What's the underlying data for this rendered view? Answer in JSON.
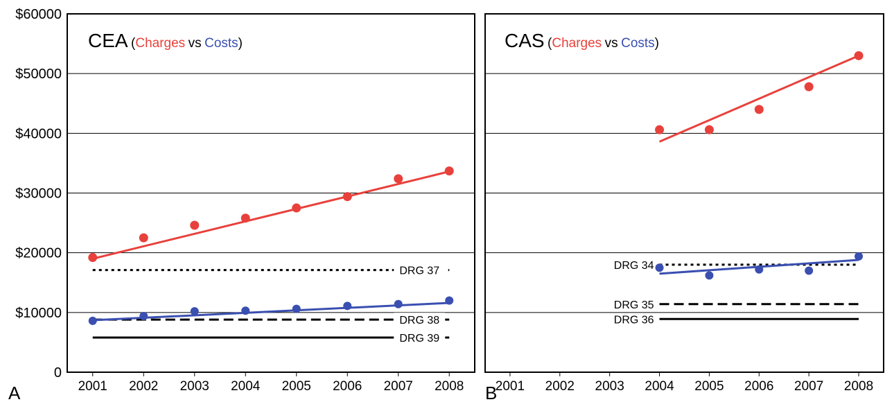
{
  "chart_data": [
    {
      "type": "scatter",
      "panel_label": "A",
      "title": "CEA",
      "series_brackets": [
        "(",
        ")"
      ],
      "series_separator": "vs",
      "xlim": [
        2000.5,
        2008.5
      ],
      "xticks": [
        2001,
        2002,
        2003,
        2004,
        2005,
        2006,
        2007,
        2008
      ],
      "ylim": [
        0,
        60000
      ],
      "yticks": [
        0,
        {
          "value": 10000,
          "label": "$10000"
        },
        {
          "value": 20000,
          "label": "$20000"
        },
        {
          "value": 30000,
          "label": "$30000"
        },
        {
          "value": 40000,
          "label": "$40000"
        },
        {
          "value": 50000,
          "label": "$50000"
        },
        {
          "value": 60000,
          "label": "$60000"
        }
      ],
      "y_tick_labels": true,
      "grid": true,
      "series": [
        {
          "name": "Charges",
          "color": "#e8413c",
          "x": [
            2001,
            2002,
            2003,
            2004,
            2005,
            2006,
            2007,
            2008
          ],
          "values": [
            19200,
            22500,
            24600,
            25800,
            27500,
            29400,
            32400,
            33700
          ],
          "trend": {
            "x": [
              2001,
              2008
            ],
            "values": [
              19000,
              33600
            ]
          }
        },
        {
          "name": "Costs",
          "color": "#3a4fb0",
          "x": [
            2001,
            2002,
            2003,
            2004,
            2005,
            2006,
            2007,
            2008
          ],
          "values": [
            8600,
            9400,
            10200,
            10300,
            10600,
            11100,
            11400,
            12000
          ],
          "trend": {
            "x": [
              2001,
              2008
            ],
            "values": [
              8700,
              11600
            ]
          }
        }
      ],
      "reference_lines": [
        {
          "label": "DRG 37",
          "value": 17100,
          "style": "dotted",
          "x": [
            2001,
            2008
          ],
          "label_position": "end"
        },
        {
          "label": "DRG 38",
          "value": 8800,
          "style": "dashed",
          "x": [
            2001,
            2008
          ],
          "label_position": "end"
        },
        {
          "label": "DRG 39",
          "value": 5800,
          "style": "solid",
          "x": [
            2001,
            2008
          ],
          "label_position": "end"
        }
      ]
    },
    {
      "type": "scatter",
      "panel_label": "B",
      "title": "CAS",
      "series_brackets": [
        "(",
        ")"
      ],
      "series_separator": "vs",
      "xlim": [
        2000.5,
        2008.5
      ],
      "xticks": [
        2001,
        2002,
        2003,
        2004,
        2005,
        2006,
        2007,
        2008
      ],
      "ylim": [
        0,
        60000
      ],
      "yticks": [
        0,
        10000,
        20000,
        30000,
        40000,
        50000,
        60000
      ],
      "y_tick_labels": false,
      "grid": true,
      "series": [
        {
          "name": "Charges",
          "color": "#e8413c",
          "x": [
            2004,
            2005,
            2006,
            2007,
            2008
          ],
          "values": [
            40600,
            40600,
            44000,
            47800,
            53000
          ],
          "trend": {
            "x": [
              2004,
              2008
            ],
            "values": [
              38600,
              53000
            ]
          }
        },
        {
          "name": "Costs",
          "color": "#3a4fb0",
          "x": [
            2004,
            2005,
            2006,
            2007,
            2008
          ],
          "values": [
            17500,
            16200,
            17200,
            17000,
            19400
          ],
          "trend": {
            "x": [
              2004,
              2008
            ],
            "values": [
              16500,
              18800
            ]
          }
        }
      ],
      "reference_lines": [
        {
          "label": "DRG 34",
          "value": 18000,
          "style": "dotted",
          "x": [
            2004,
            2008
          ],
          "label_position": "start"
        },
        {
          "label": "DRG 35",
          "value": 11400,
          "style": "dashed",
          "x": [
            2004,
            2008
          ],
          "label_position": "start"
        },
        {
          "label": "DRG 36",
          "value": 8900,
          "style": "solid",
          "x": [
            2004,
            2008
          ],
          "label_position": "start"
        }
      ]
    }
  ]
}
